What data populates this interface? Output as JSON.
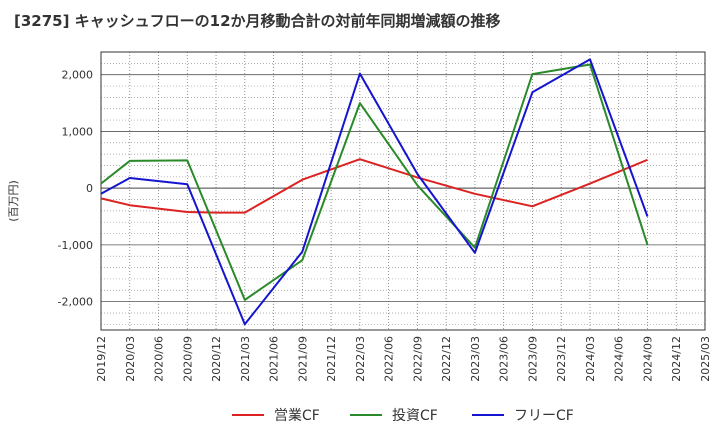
{
  "chart_data": {
    "type": "line",
    "title": "[3275]  キャッシュフローの12か月移動合計の対前年同期増減額の推移",
    "ylabel": "(百万円)",
    "ylim": [
      -2500,
      2400
    ],
    "yticks": [
      2000,
      1000,
      0,
      -1000,
      -2000
    ],
    "ytick_labels": [
      "2,000",
      "1,000",
      "0",
      "-1,000",
      "-2,000"
    ],
    "x_ticks": [
      "2019/12",
      "2020/03",
      "2020/06",
      "2020/09",
      "2020/12",
      "2021/03",
      "2021/06",
      "2021/09",
      "2021/12",
      "2022/03",
      "2022/06",
      "2022/09",
      "2022/12",
      "2023/03",
      "2023/06",
      "2023/09",
      "2023/12",
      "2024/03",
      "2024/06",
      "2024/09",
      "2024/12",
      "2025/03"
    ],
    "grid": true,
    "legend_position": "bottom",
    "series": [
      {
        "name": "営業CF",
        "color": "#dd2222",
        "x": [
          "2019/12",
          "2020/03",
          "2020/09",
          "2020/12",
          "2021/03",
          "2021/09",
          "2022/03",
          "2022/09",
          "2023/03",
          "2023/09",
          "2024/03",
          "2024/09"
        ],
        "values": [
          -180,
          -300,
          -420,
          -430,
          -430,
          150,
          510,
          190,
          -100,
          -320,
          80,
          500
        ]
      },
      {
        "name": "投資CF",
        "color": "#2a8a2a",
        "x": [
          "2019/12",
          "2020/03",
          "2020/09",
          "2021/03",
          "2021/09",
          "2022/03",
          "2022/09",
          "2023/03",
          "2023/09",
          "2024/03",
          "2024/09"
        ],
        "values": [
          80,
          480,
          490,
          -1970,
          -1270,
          1500,
          50,
          -1050,
          2010,
          2180,
          -1000
        ]
      },
      {
        "name": "フリーCF",
        "color": "#1515d0",
        "x": [
          "2019/12",
          "2020/03",
          "2020/09",
          "2021/03",
          "2021/09",
          "2022/03",
          "2022/09",
          "2023/03",
          "2023/09",
          "2024/03",
          "2024/09"
        ],
        "values": [
          -100,
          180,
          70,
          -2400,
          -1120,
          2020,
          250,
          -1140,
          1690,
          2270,
          -500
        ]
      }
    ]
  }
}
